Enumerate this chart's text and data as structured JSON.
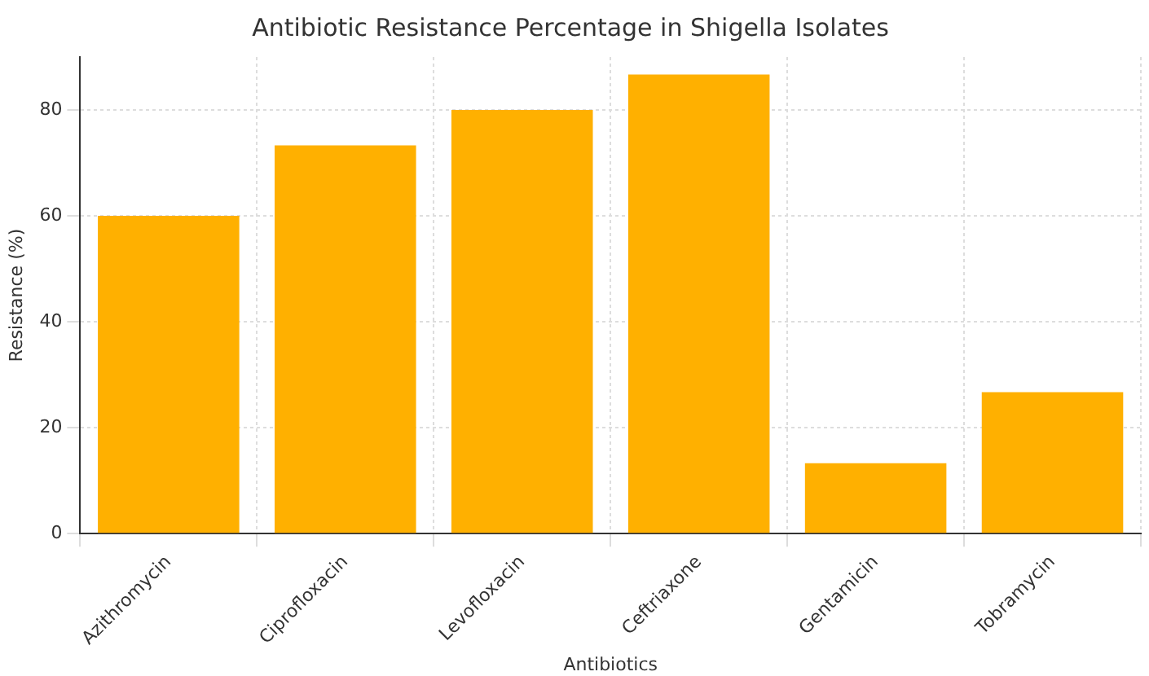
{
  "chart_data": {
    "type": "bar",
    "title": "Antibiotic Resistance Percentage in Shigella Isolates",
    "xlabel": "Antibiotics",
    "ylabel": "Resistance (%)",
    "categories": [
      "Azithromycin",
      "Ciprofloxacin",
      "Levofloxacin",
      "Ceftriaxone",
      "Gentamicin",
      "Tobramycin"
    ],
    "values": [
      60,
      73.3,
      80,
      86.7,
      13.3,
      26.7
    ],
    "color": "#ffb000",
    "ylim": [
      0,
      90
    ],
    "yticks": [
      0,
      20,
      40,
      60,
      80
    ],
    "grid": true
  }
}
